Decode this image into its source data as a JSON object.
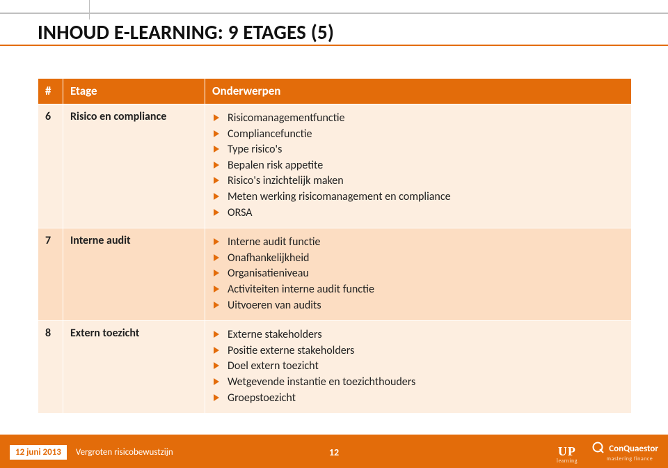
{
  "colors": {
    "accent": "#e36c0a",
    "header_text": "#ffffff",
    "row_light": "#fdeee0",
    "row_dark": "#fcddc2",
    "text": "#222222",
    "rule": "#bfbfbf",
    "page_bg": "#ffffff"
  },
  "title": "INHOUD E-LEARNING: 9 ETAGES (5)",
  "table": {
    "headers": {
      "num": "#",
      "etage": "Etage",
      "topics": "Onderwerpen"
    },
    "rows": [
      {
        "num": "6",
        "etage": "Risico en compliance",
        "shade": "light",
        "topics": [
          "Risicomanagementfunctie",
          "Compliancefunctie",
          "Type risico's",
          "Bepalen risk appetite",
          "Risico's inzichtelijk maken",
          "Meten werking risicomanagement en compliance",
          "ORSA"
        ]
      },
      {
        "num": "7",
        "etage": "Interne audit",
        "shade": "dark",
        "topics": [
          "Interne audit functie",
          "Onafhankelijkheid",
          "Organisatieniveau",
          "Activiteiten interne audit functie",
          "Uitvoeren van audits"
        ]
      },
      {
        "num": "8",
        "etage": "Extern toezicht",
        "shade": "light",
        "topics": [
          "Externe stakeholders",
          "Positie externe stakeholders",
          "Doel extern toezicht",
          "Wetgevende instantie en toezichthouders",
          "Groepstoezicht"
        ]
      }
    ]
  },
  "footer": {
    "date": "12 juni 2013",
    "subtitle": "Vergroten risicobewustzijn",
    "page": "12",
    "logo_up": {
      "big": "UP",
      "small": "learning"
    },
    "logo_cq": {
      "name": "ConQuaestor",
      "tag": "mastering finance"
    }
  }
}
